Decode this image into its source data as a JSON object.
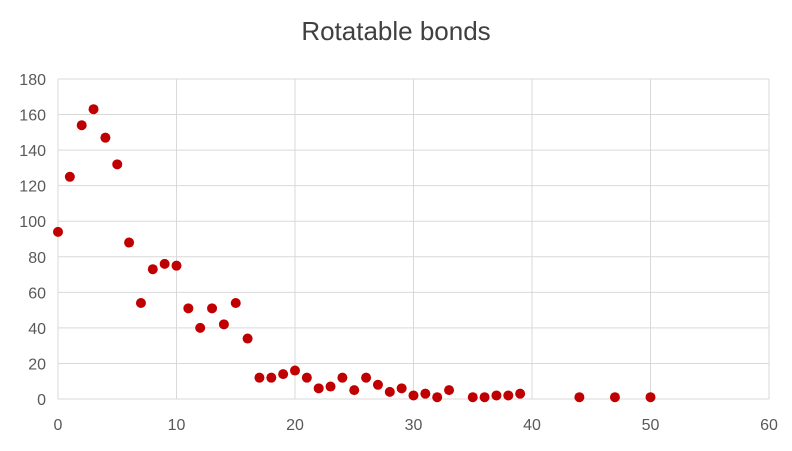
{
  "chart_data": {
    "type": "scatter",
    "title": "Rotatable bonds",
    "xlabel": "",
    "ylabel": "",
    "xlim": [
      0,
      60
    ],
    "ylim": [
      0,
      180
    ],
    "xticks": [
      0,
      10,
      20,
      30,
      40,
      50,
      60
    ],
    "yticks": [
      0,
      20,
      40,
      60,
      80,
      100,
      120,
      140,
      160,
      180
    ],
    "grid": true,
    "legend": "none",
    "marker_color": "#C00000",
    "grid_color": "#D9D9D9",
    "points": [
      [
        0,
        94
      ],
      [
        1,
        125
      ],
      [
        2,
        154
      ],
      [
        3,
        163
      ],
      [
        4,
        147
      ],
      [
        5,
        132
      ],
      [
        6,
        88
      ],
      [
        7,
        54
      ],
      [
        8,
        73
      ],
      [
        9,
        76
      ],
      [
        10,
        75
      ],
      [
        11,
        51
      ],
      [
        12,
        40
      ],
      [
        13,
        51
      ],
      [
        14,
        42
      ],
      [
        15,
        54
      ],
      [
        16,
        34
      ],
      [
        17,
        12
      ],
      [
        18,
        12
      ],
      [
        19,
        14
      ],
      [
        20,
        16
      ],
      [
        21,
        12
      ],
      [
        22,
        6
      ],
      [
        23,
        7
      ],
      [
        24,
        12
      ],
      [
        25,
        5
      ],
      [
        26,
        12
      ],
      [
        27,
        8
      ],
      [
        28,
        4
      ],
      [
        29,
        6
      ],
      [
        30,
        2
      ],
      [
        31,
        3
      ],
      [
        32,
        1
      ],
      [
        33,
        5
      ],
      [
        35,
        1
      ],
      [
        36,
        1
      ],
      [
        37,
        2
      ],
      [
        38,
        2
      ],
      [
        39,
        3
      ],
      [
        44,
        1
      ],
      [
        47,
        1
      ],
      [
        50,
        1
      ]
    ]
  }
}
